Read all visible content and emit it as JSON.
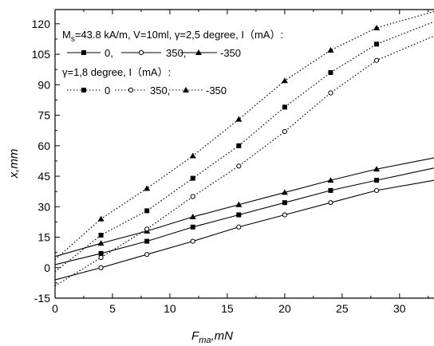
{
  "chart_data": {
    "type": "line",
    "xlabel": "F",
    "xlabel_sub": "ma",
    "xlabel_suffix": ",mN",
    "ylabel": "x,mm",
    "xlim": [
      0,
      33
    ],
    "ylim": [
      -15,
      127
    ],
    "xticks": [
      0,
      5,
      10,
      15,
      20,
      25,
      30
    ],
    "yticks": [
      -15,
      0,
      15,
      30,
      45,
      60,
      75,
      90,
      105,
      120
    ],
    "grid": false,
    "legend": {
      "placement": "top-left",
      "line1": "M",
      "line1_sub": "s",
      "line1_rest": "=43.8 kA/m, V=10ml, γ=2,5 degree, I（mA）:",
      "line2_labels": [
        "0,",
        "350,",
        "-350"
      ],
      "line3": "γ=1,8 degree, I（mA）:",
      "line4_labels": [
        "0",
        "350,",
        "-350"
      ]
    },
    "series": [
      {
        "group": "gamma-2.5",
        "current": "0",
        "style": "solid",
        "marker": "square",
        "x": [
          0,
          4,
          8,
          12,
          16,
          20,
          24,
          28,
          33
        ],
        "y": [
          1.5,
          7,
          13,
          20,
          26,
          32,
          38,
          43,
          49
        ]
      },
      {
        "group": "gamma-2.5",
        "current": "350",
        "style": "solid",
        "marker": "circle",
        "x": [
          0,
          4,
          8,
          12,
          16,
          20,
          24,
          28,
          33
        ],
        "y": [
          -6,
          0,
          6.5,
          13,
          20,
          26,
          32,
          38,
          43
        ]
      },
      {
        "group": "gamma-2.5",
        "current": "-350",
        "style": "solid",
        "marker": "triangle",
        "x": [
          0,
          4,
          8,
          12,
          16,
          20,
          24,
          28,
          33
        ],
        "y": [
          5.5,
          12,
          18,
          25,
          31,
          37,
          43,
          48.5,
          54
        ]
      },
      {
        "group": "gamma-1.8",
        "current": "0",
        "style": "dotted",
        "marker": "square",
        "x": [
          0,
          4,
          8,
          12,
          16,
          20,
          24,
          28,
          33
        ],
        "y": [
          -2,
          16,
          28,
          44,
          60,
          79,
          96,
          110,
          121
        ]
      },
      {
        "group": "gamma-1.8",
        "current": "350",
        "style": "dotted",
        "marker": "circle",
        "x": [
          0,
          4,
          8,
          12,
          16,
          20,
          24,
          28,
          33
        ],
        "y": [
          -9,
          5,
          19,
          35,
          50,
          67,
          86,
          102,
          114
        ]
      },
      {
        "group": "gamma-1.8",
        "current": "-350",
        "style": "dotted",
        "marker": "triangle",
        "x": [
          0,
          4,
          8,
          12,
          16,
          20,
          24,
          28,
          33
        ],
        "y": [
          4,
          24,
          39,
          55,
          73,
          92,
          107,
          118,
          126
        ]
      }
    ]
  }
}
